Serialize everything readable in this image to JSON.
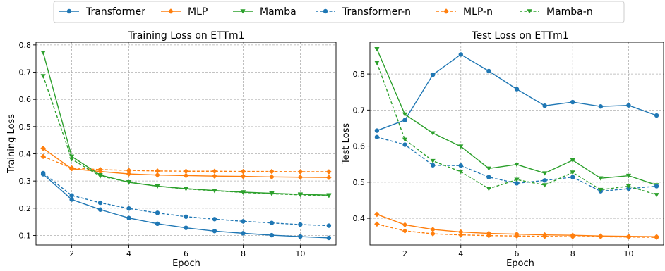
{
  "legend": [
    {
      "name": "Transformer",
      "color": "#1f77b4",
      "marker": "circle",
      "dash": false
    },
    {
      "name": "MLP",
      "color": "#ff7f0e",
      "marker": "diamond",
      "dash": false
    },
    {
      "name": "Mamba",
      "color": "#2ca02c",
      "marker": "triangle",
      "dash": false
    },
    {
      "name": "Transformer-n",
      "color": "#1f77b4",
      "marker": "circle",
      "dash": true
    },
    {
      "name": "MLP-n",
      "color": "#ff7f0e",
      "marker": "diamond",
      "dash": true
    },
    {
      "name": "Mamba-n",
      "color": "#2ca02c",
      "marker": "triangle",
      "dash": true
    }
  ],
  "chart_data": [
    {
      "type": "line",
      "title": "Training Loss on ETTm1",
      "xlabel": "Epoch",
      "ylabel": "Training Loss",
      "xlim": [
        0.75,
        11.25
      ],
      "ylim": [
        0.065,
        0.81
      ],
      "xticks": [
        2,
        4,
        6,
        8,
        10
      ],
      "yticks": [
        0.1,
        0.2,
        0.3,
        0.4,
        0.5,
        0.6,
        0.7,
        0.8
      ],
      "grid": true,
      "x": [
        1,
        2,
        3,
        4,
        5,
        6,
        7,
        8,
        9,
        10,
        11
      ],
      "series": [
        {
          "name": "Transformer",
          "values": [
            0.325,
            0.232,
            0.195,
            0.164,
            0.143,
            0.128,
            0.116,
            0.108,
            0.101,
            0.096,
            0.091
          ]
        },
        {
          "name": "MLP",
          "values": [
            0.42,
            0.345,
            0.335,
            0.326,
            0.322,
            0.32,
            0.318,
            0.317,
            0.315,
            0.314,
            0.313
          ]
        },
        {
          "name": "Mamba",
          "values": [
            0.772,
            0.39,
            0.322,
            0.295,
            0.281,
            0.272,
            0.265,
            0.259,
            0.255,
            0.251,
            0.248
          ]
        },
        {
          "name": "Transformer-n",
          "values": [
            0.329,
            0.247,
            0.22,
            0.199,
            0.183,
            0.169,
            0.16,
            0.152,
            0.146,
            0.14,
            0.136
          ]
        },
        {
          "name": "MLP-n",
          "values": [
            0.39,
            0.348,
            0.342,
            0.339,
            0.337,
            0.336,
            0.336,
            0.335,
            0.335,
            0.334,
            0.334
          ]
        },
        {
          "name": "Mamba-n",
          "values": [
            0.686,
            0.38,
            0.318,
            0.296,
            0.281,
            0.271,
            0.264,
            0.258,
            0.253,
            0.249,
            0.246
          ]
        }
      ]
    },
    {
      "type": "line",
      "title": "Test Loss on ETTm1",
      "xlabel": "Epoch",
      "ylabel": "Test Loss",
      "xlim": [
        0.75,
        11.25
      ],
      "ylim": [
        0.326,
        0.888
      ],
      "xticks": [
        2,
        4,
        6,
        8,
        10
      ],
      "yticks": [
        0.4,
        0.5,
        0.6,
        0.7,
        0.8
      ],
      "grid": true,
      "x": [
        1,
        2,
        3,
        4,
        5,
        6,
        7,
        8,
        9,
        10,
        11
      ],
      "series": [
        {
          "name": "Transformer",
          "values": [
            0.643,
            0.672,
            0.798,
            0.854,
            0.808,
            0.758,
            0.712,
            0.722,
            0.71,
            0.713,
            0.685
          ]
        },
        {
          "name": "MLP",
          "values": [
            0.411,
            0.382,
            0.369,
            0.362,
            0.358,
            0.356,
            0.354,
            0.353,
            0.351,
            0.35,
            0.349
          ]
        },
        {
          "name": "Mamba",
          "values": [
            0.869,
            0.688,
            0.636,
            0.599,
            0.538,
            0.549,
            0.525,
            0.561,
            0.511,
            0.518,
            0.492
          ]
        },
        {
          "name": "Transformer-n",
          "values": [
            0.625,
            0.604,
            0.547,
            0.546,
            0.514,
            0.497,
            0.505,
            0.514,
            0.475,
            0.482,
            0.489
          ]
        },
        {
          "name": "MLP-n",
          "values": [
            0.384,
            0.365,
            0.357,
            0.354,
            0.352,
            0.351,
            0.35,
            0.349,
            0.349,
            0.348,
            0.347
          ]
        },
        {
          "name": "Mamba-n",
          "values": [
            0.831,
            0.618,
            0.559,
            0.529,
            0.482,
            0.507,
            0.492,
            0.527,
            0.479,
            0.489,
            0.465
          ]
        }
      ]
    }
  ]
}
